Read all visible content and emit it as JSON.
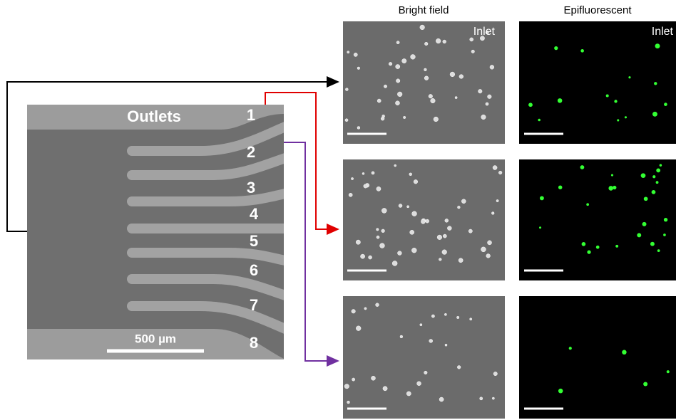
{
  "column_headers": [
    "Bright field",
    "Epifluorescent"
  ],
  "panel_labels": [
    "Inlet",
    "Inlet"
  ],
  "chip": {
    "label": "Outlets",
    "outlets": [
      "1",
      "2",
      "3",
      "4",
      "5",
      "6",
      "7",
      "8"
    ],
    "scale_bar": "500 µm"
  }
}
